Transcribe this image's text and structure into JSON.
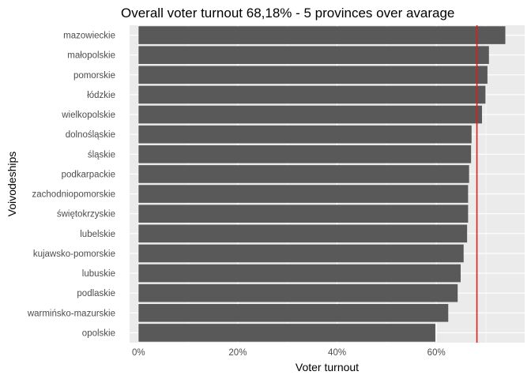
{
  "chart_data": {
    "type": "bar",
    "orientation": "horizontal",
    "title": "Overall voter turnout 68,18% - 5 provinces over avarage",
    "xlabel": "Voter turnout",
    "ylabel": "Voivodeships",
    "categories": [
      "mazowieckie",
      "małopolskie",
      "pomorskie",
      "łódzkie",
      "wielkopolskie",
      "dolnośląskie",
      "śląskie",
      "podkarpackie",
      "zachodniopomorskie",
      "świętokrzyskie",
      "lubelskie",
      "kujawsko-pomorskie",
      "lubuskie",
      "podlaskie",
      "warmińsko-mazurskie",
      "opolskie"
    ],
    "values": [
      73.9,
      70.6,
      70.3,
      69.9,
      69.2,
      67.1,
      67.0,
      66.6,
      66.4,
      66.4,
      66.2,
      65.5,
      64.9,
      64.3,
      62.4,
      59.8
    ],
    "reference_line": {
      "value": 68.18
    },
    "xlim": [
      -1.8,
      77.8
    ],
    "x_ticks": [
      0,
      20,
      40,
      60
    ],
    "x_tick_labels": [
      "0%",
      "20%",
      "40%",
      "60%"
    ],
    "grid": true,
    "colors": {
      "bar": "#595959",
      "panel_background": "#ebebeb",
      "grid_major": "#ffffff",
      "reference_line": "#e31a1c"
    }
  }
}
